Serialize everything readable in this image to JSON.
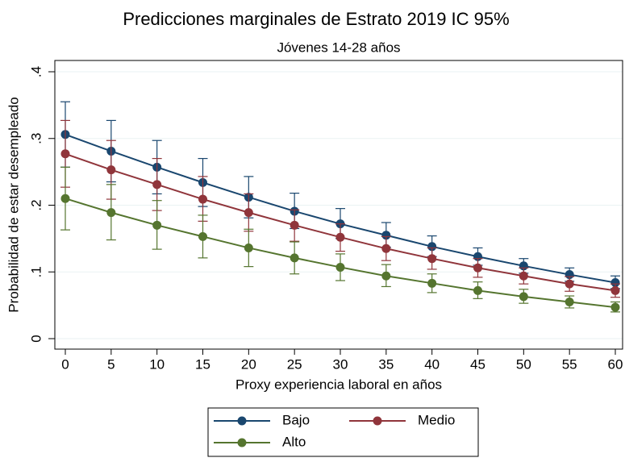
{
  "chart_data": {
    "type": "line",
    "title": "Predicciones marginales de Estrato 2019 IC 95%",
    "subtitle": "Jóvenes 14-28 años",
    "x_label": "Proxy experiencia laboral en años",
    "y_label": "Probabilidad de estar desempleado",
    "x": [
      0,
      5,
      10,
      15,
      20,
      25,
      30,
      35,
      40,
      45,
      50,
      55,
      60
    ],
    "xlim": [
      0,
      60
    ],
    "xticks": [
      0,
      5,
      10,
      15,
      20,
      25,
      30,
      35,
      40,
      45,
      50,
      55,
      60
    ],
    "ylim": [
      0,
      0.4
    ],
    "yticks": [
      0,
      {
        "value": 0.1,
        "label": ".1"
      },
      {
        "value": 0.2,
        "label": ".2"
      },
      {
        "value": 0.3,
        "label": ".3"
      },
      {
        "value": 0.4,
        "label": ".4"
      }
    ],
    "grid": true,
    "legend": "bottom",
    "series": [
      {
        "name": "Bajo",
        "color": "#1a476f",
        "values": [
          0.306,
          0.281,
          0.257,
          0.234,
          0.212,
          0.191,
          0.172,
          0.155,
          0.138,
          0.123,
          0.109,
          0.096,
          0.084
        ],
        "lower": [
          0.257,
          0.235,
          0.217,
          0.198,
          0.181,
          0.165,
          0.15,
          0.137,
          0.123,
          0.11,
          0.098,
          0.086,
          0.075
        ],
        "upper": [
          0.355,
          0.327,
          0.297,
          0.27,
          0.243,
          0.218,
          0.195,
          0.174,
          0.154,
          0.136,
          0.12,
          0.106,
          0.094
        ]
      },
      {
        "name": "Medio",
        "color": "#90353b",
        "values": [
          0.277,
          0.253,
          0.231,
          0.209,
          0.189,
          0.17,
          0.152,
          0.135,
          0.12,
          0.106,
          0.094,
          0.082,
          0.072
        ],
        "lower": [
          0.227,
          0.209,
          0.192,
          0.176,
          0.161,
          0.146,
          0.131,
          0.117,
          0.104,
          0.092,
          0.082,
          0.071,
          0.062
        ],
        "upper": [
          0.327,
          0.297,
          0.27,
          0.243,
          0.217,
          0.193,
          0.172,
          0.153,
          0.136,
          0.12,
          0.106,
          0.093,
          0.082
        ]
      },
      {
        "name": "Alto",
        "color": "#55752f",
        "values": [
          0.21,
          0.189,
          0.17,
          0.153,
          0.136,
          0.121,
          0.107,
          0.094,
          0.083,
          0.072,
          0.063,
          0.055,
          0.047
        ],
        "lower": [
          0.163,
          0.148,
          0.134,
          0.121,
          0.108,
          0.097,
          0.087,
          0.078,
          0.069,
          0.06,
          0.053,
          0.046,
          0.04
        ],
        "upper": [
          0.257,
          0.231,
          0.207,
          0.185,
          0.164,
          0.145,
          0.127,
          0.111,
          0.097,
          0.085,
          0.074,
          0.064,
          0.055
        ]
      }
    ]
  }
}
